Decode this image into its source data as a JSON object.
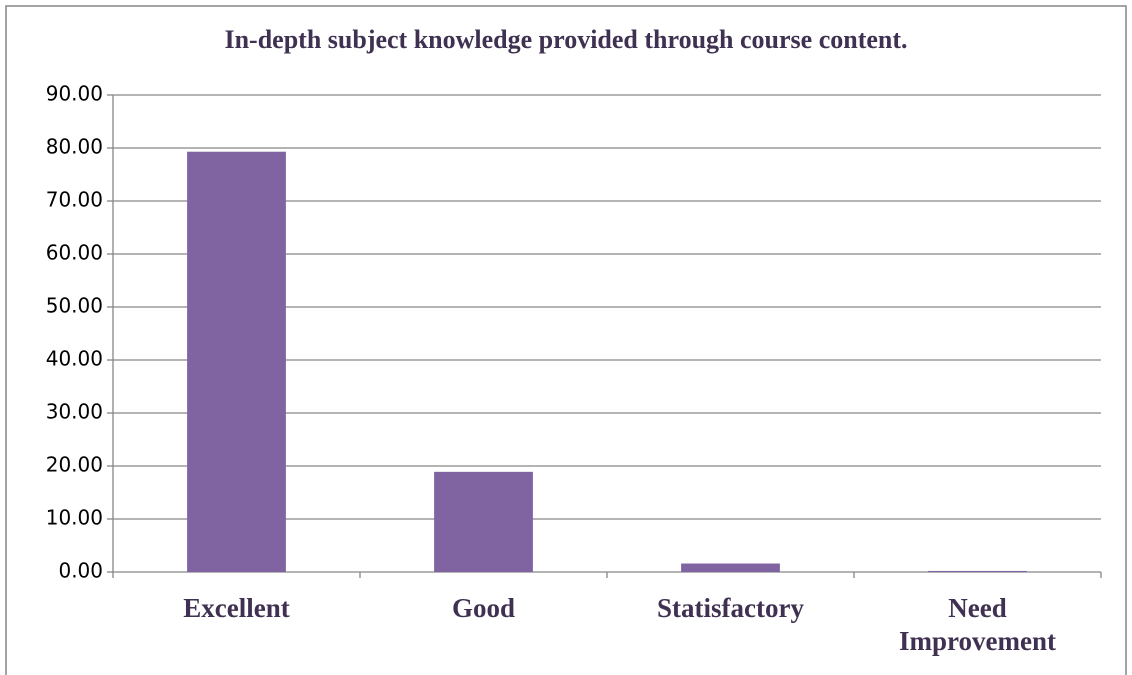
{
  "chart_data": {
    "type": "bar",
    "title": "In-depth subject knowledge provided through course content.",
    "categories": [
      "Excellent",
      "Good",
      "Statisfactory",
      "Need Improvement"
    ],
    "values": [
      79.3,
      18.9,
      1.6,
      0.2
    ],
    "color": "#8064a2",
    "ylim": [
      0,
      90
    ],
    "yticks": [
      {
        "value": 0,
        "label": "0.00"
      },
      {
        "value": 10,
        "label": "10.00"
      },
      {
        "value": 20,
        "label": "20.00"
      },
      {
        "value": 30,
        "label": "30.00"
      },
      {
        "value": 40,
        "label": "40.00"
      },
      {
        "value": 50,
        "label": "50.00"
      },
      {
        "value": 60,
        "label": "60.00"
      },
      {
        "value": 70,
        "label": "70.00"
      },
      {
        "value": 80,
        "label": "80.00"
      },
      {
        "value": 90,
        "label": "90.00"
      }
    ],
    "grid": true
  }
}
